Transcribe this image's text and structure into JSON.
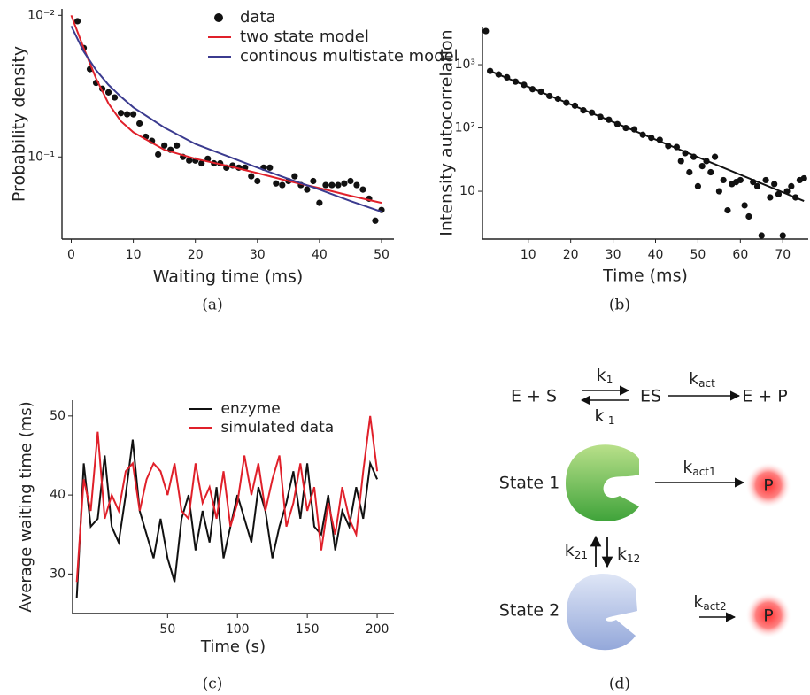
{
  "chart_data": [
    {
      "type": "line",
      "caption": "(a)",
      "xlabel": "Waiting time (ms)",
      "ylabel": "Probability density",
      "xlim": [
        -1.5,
        52
      ],
      "xticks": [
        0,
        10,
        20,
        30,
        40,
        50
      ],
      "yscale": "log",
      "ylim": [
        0.38,
        0.009
      ],
      "yticks": [
        {
          "value": 0.01,
          "label": "10⁻²"
        },
        {
          "value": 0.1,
          "label": "10⁻¹"
        }
      ],
      "legend": "upper right",
      "series": [
        {
          "name": "data",
          "mode": "markers",
          "color": "#111111",
          "x": [
            1,
            2,
            3,
            4,
            5,
            6,
            7,
            8,
            9,
            10,
            11,
            12,
            13,
            14,
            15,
            16,
            17,
            18,
            19,
            20,
            21,
            22,
            23,
            24,
            25,
            26,
            27,
            28,
            29,
            30,
            31,
            32,
            33,
            34,
            35,
            36,
            37,
            38,
            39,
            40,
            41,
            42,
            43,
            44,
            45,
            46,
            47,
            48,
            49,
            50
          ],
          "values": [
            0.011,
            0.017,
            0.024,
            0.03,
            0.033,
            0.035,
            0.038,
            0.049,
            0.05,
            0.05,
            0.058,
            0.072,
            0.077,
            0.096,
            0.083,
            0.089,
            0.083,
            0.1,
            0.106,
            0.106,
            0.111,
            0.103,
            0.111,
            0.111,
            0.119,
            0.115,
            0.119,
            0.119,
            0.137,
            0.148,
            0.119,
            0.119,
            0.154,
            0.158,
            0.148,
            0.137,
            0.158,
            0.17,
            0.148,
            0.211,
            0.158,
            0.158,
            0.158,
            0.154,
            0.148,
            0.158,
            0.17,
            0.197,
            0.282,
            0.237
          ]
        },
        {
          "name": "two state model",
          "mode": "lines",
          "color": "#e0202a",
          "x": [
            0,
            2,
            4,
            6,
            8,
            10,
            15,
            20,
            25,
            30,
            35,
            40,
            45,
            50
          ],
          "values": [
            0.01,
            0.017,
            0.028,
            0.042,
            0.056,
            0.067,
            0.089,
            0.103,
            0.115,
            0.13,
            0.148,
            0.166,
            0.188,
            0.211
          ]
        },
        {
          "name": "continous multistate model",
          "mode": "lines",
          "color": "#3b3b8f",
          "x": [
            0,
            2,
            4,
            6,
            8,
            10,
            15,
            20,
            25,
            30,
            35,
            40,
            45,
            50
          ],
          "values": [
            0.0119,
            0.018,
            0.0244,
            0.031,
            0.0376,
            0.0447,
            0.062,
            0.081,
            0.098,
            0.119,
            0.143,
            0.17,
            0.205,
            0.244
          ]
        }
      ]
    },
    {
      "type": "line",
      "caption": "(b)",
      "xlabel": "Time (ms)",
      "ylabel": "Intensity  autocorrelation",
      "xlim": [
        -0.8,
        76
      ],
      "xticks": [
        10,
        20,
        30,
        40,
        50,
        60,
        70
      ],
      "yscale": "log",
      "ylim": [
        1.76,
        4000
      ],
      "yticks": [
        10,
        {
          "value": 100,
          "label": "10²"
        },
        {
          "value": 1000,
          "label": "10³"
        }
      ],
      "series": [
        {
          "mode": "markers",
          "color": "#111111",
          "x": [
            0,
            1,
            3,
            5,
            7,
            9,
            11,
            13,
            15,
            17,
            19,
            21,
            23,
            25,
            27,
            29,
            31,
            33,
            35,
            37,
            39,
            41,
            43,
            45,
            46,
            47,
            48,
            49,
            50,
            51,
            52,
            53,
            54,
            55,
            56,
            57,
            58,
            59,
            60,
            61,
            62,
            63,
            64,
            65,
            66,
            67,
            68,
            69,
            70,
            71,
            72,
            73,
            74,
            75
          ],
          "values": [
            3400,
            794,
            700,
            630,
            540,
            480,
            410,
            375,
            320,
            290,
            250,
            225,
            190,
            175,
            150,
            135,
            115,
            100,
            95,
            78,
            70,
            65,
            52,
            50,
            30,
            40,
            20,
            35,
            12,
            25,
            30,
            20,
            35,
            10,
            15,
            5,
            13,
            14,
            15,
            6,
            4,
            14,
            12,
            2,
            15,
            8,
            13,
            9,
            2,
            10,
            12,
            8,
            15,
            16
          ]
        },
        {
          "mode": "lines",
          "color": "#111111",
          "x": [
            1,
            75
          ],
          "values": [
            794,
            7
          ]
        }
      ]
    },
    {
      "type": "line",
      "caption": "(c)",
      "xlabel": "Time (s)",
      "ylabel": "Average waiting time (ms)",
      "xlim": [
        -18,
        212
      ],
      "xticks": [
        50,
        100,
        150,
        200
      ],
      "ylim": [
        25,
        52
      ],
      "yticks": [
        30,
        40,
        50
      ],
      "legend": "upper center",
      "series": [
        {
          "name": "enzyme",
          "mode": "lines",
          "color": "#111111",
          "x": [
            -15,
            -10,
            -5,
            0,
            5,
            10,
            15,
            20,
            25,
            30,
            35,
            40,
            45,
            50,
            55,
            60,
            65,
            70,
            75,
            80,
            85,
            90,
            95,
            100,
            105,
            110,
            115,
            120,
            125,
            130,
            135,
            140,
            145,
            150,
            155,
            160,
            165,
            170,
            175,
            180,
            185,
            190,
            195,
            200
          ],
          "values": [
            27,
            44,
            36,
            37,
            45,
            36,
            34,
            40,
            47,
            38,
            35,
            32,
            37,
            32,
            29,
            37,
            40,
            33,
            38,
            34,
            41,
            32,
            36,
            40,
            37,
            34,
            41,
            38,
            32,
            36,
            39,
            43,
            37,
            44,
            36,
            35,
            40,
            33,
            38,
            36,
            41,
            37,
            44,
            42
          ]
        },
        {
          "name": "simulated data",
          "mode": "lines",
          "color": "#e0202a",
          "x": [
            -15,
            -10,
            -5,
            0,
            5,
            10,
            15,
            20,
            25,
            30,
            35,
            40,
            45,
            50,
            55,
            60,
            65,
            70,
            75,
            80,
            85,
            90,
            95,
            100,
            105,
            110,
            115,
            120,
            125,
            130,
            135,
            140,
            145,
            150,
            155,
            160,
            165,
            170,
            175,
            180,
            185,
            190,
            195,
            200
          ],
          "values": [
            29,
            42,
            38,
            48,
            37,
            40,
            38,
            43,
            44,
            38,
            42,
            44,
            43,
            40,
            44,
            38,
            37,
            44,
            39,
            41,
            37,
            43,
            36,
            39,
            45,
            40,
            44,
            38,
            42,
            45,
            36,
            39,
            44,
            38,
            41,
            33,
            39,
            35,
            41,
            37,
            35,
            43,
            50,
            43
          ]
        }
      ]
    }
  ],
  "diagram": {
    "caption": "(d)",
    "reaction": {
      "reactants": "E + S",
      "complex": "ES",
      "products": "E + P",
      "k_forward": {
        "symbol": "k",
        "subscript": "1"
      },
      "k_backward": {
        "symbol": "k",
        "subscript": "-1"
      },
      "k_cat": {
        "symbol": "k",
        "subscript": "act"
      }
    },
    "states": [
      {
        "label": "State 1",
        "rate": {
          "symbol": "k",
          "subscript": "act1"
        },
        "product": "P"
      },
      {
        "label": "State 2",
        "rate": {
          "symbol": "k",
          "subscript": "act2"
        },
        "product": "P"
      }
    ],
    "k21": {
      "symbol": "k",
      "subscript": "21"
    },
    "k12": {
      "symbol": "k",
      "subscript": "12"
    }
  }
}
